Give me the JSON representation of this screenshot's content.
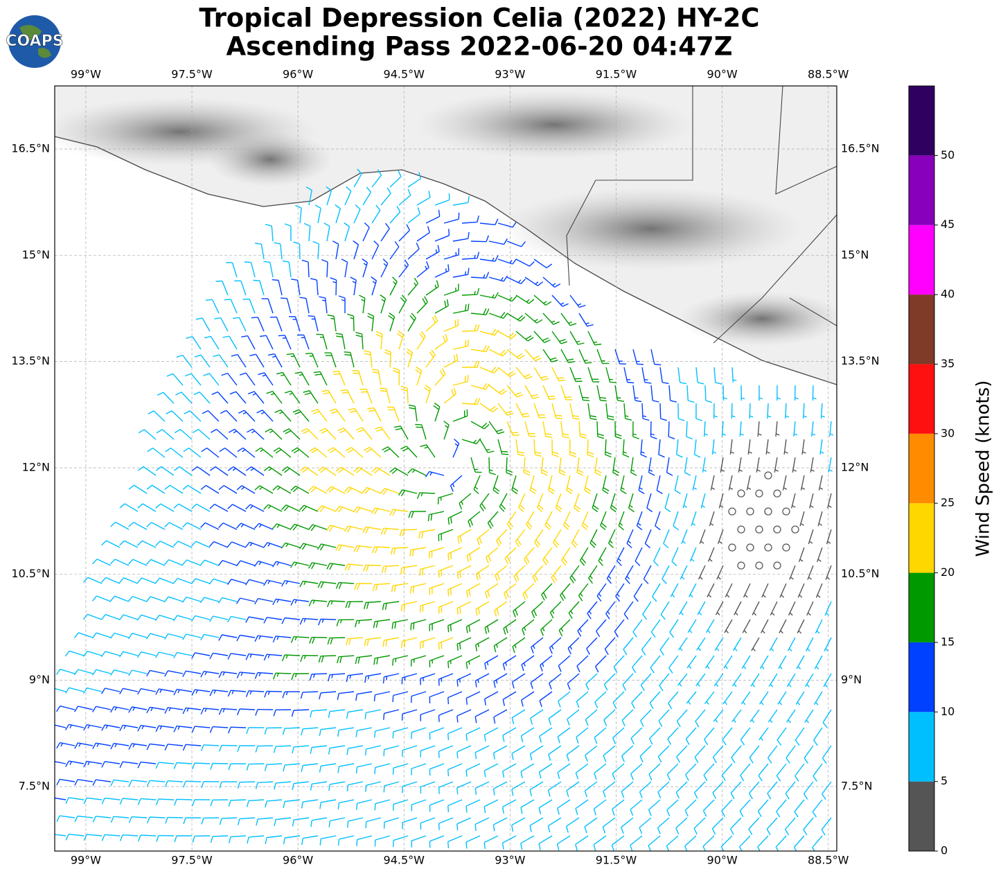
{
  "chart_data": {
    "type": "map",
    "title": "Tropical Depression Celia (2022) HY-2C",
    "subtitle": "Ascending Pass 2022-06-20 04:47Z",
    "logo": "COAPS",
    "xlim": [
      -99.44,
      -88.38
    ],
    "ylim": [
      6.59,
      17.39
    ],
    "xticks": [
      {
        "value": -99,
        "label": "99°W"
      },
      {
        "value": -97.5,
        "label": "97.5°W"
      },
      {
        "value": -96,
        "label": "96°W"
      },
      {
        "value": -94.5,
        "label": "94.5°W"
      },
      {
        "value": -93,
        "label": "93°W"
      },
      {
        "value": -91.5,
        "label": "91.5°W"
      },
      {
        "value": -90,
        "label": "90°W"
      },
      {
        "value": -88.5,
        "label": "88.5°W"
      }
    ],
    "yticks": [
      {
        "value": 7.5,
        "label": "7.5°N"
      },
      {
        "value": 9,
        "label": "9°N"
      },
      {
        "value": 10.5,
        "label": "10.5°N"
      },
      {
        "value": 12,
        "label": "12°N"
      },
      {
        "value": 13.5,
        "label": "13.5°N"
      },
      {
        "value": 15,
        "label": "15°N"
      },
      {
        "value": 16.5,
        "label": "16.5°N"
      }
    ],
    "grid": true,
    "colorbar": {
      "label": "Wind Speed (knots)",
      "lim": [
        0,
        55
      ],
      "ticks": [
        0,
        5,
        10,
        15,
        20,
        25,
        30,
        35,
        40,
        45,
        50
      ],
      "bounds": [
        0,
        5,
        10,
        15,
        20,
        25,
        30,
        35,
        40,
        45,
        50,
        55
      ],
      "colors": [
        "#555555",
        "#00bfff",
        "#0040ff",
        "#009900",
        "#ffd700",
        "#ff8c00",
        "#ff1010",
        "#803a28",
        "#ff00ff",
        "#8800bb",
        "#300060"
      ]
    }
  }
}
